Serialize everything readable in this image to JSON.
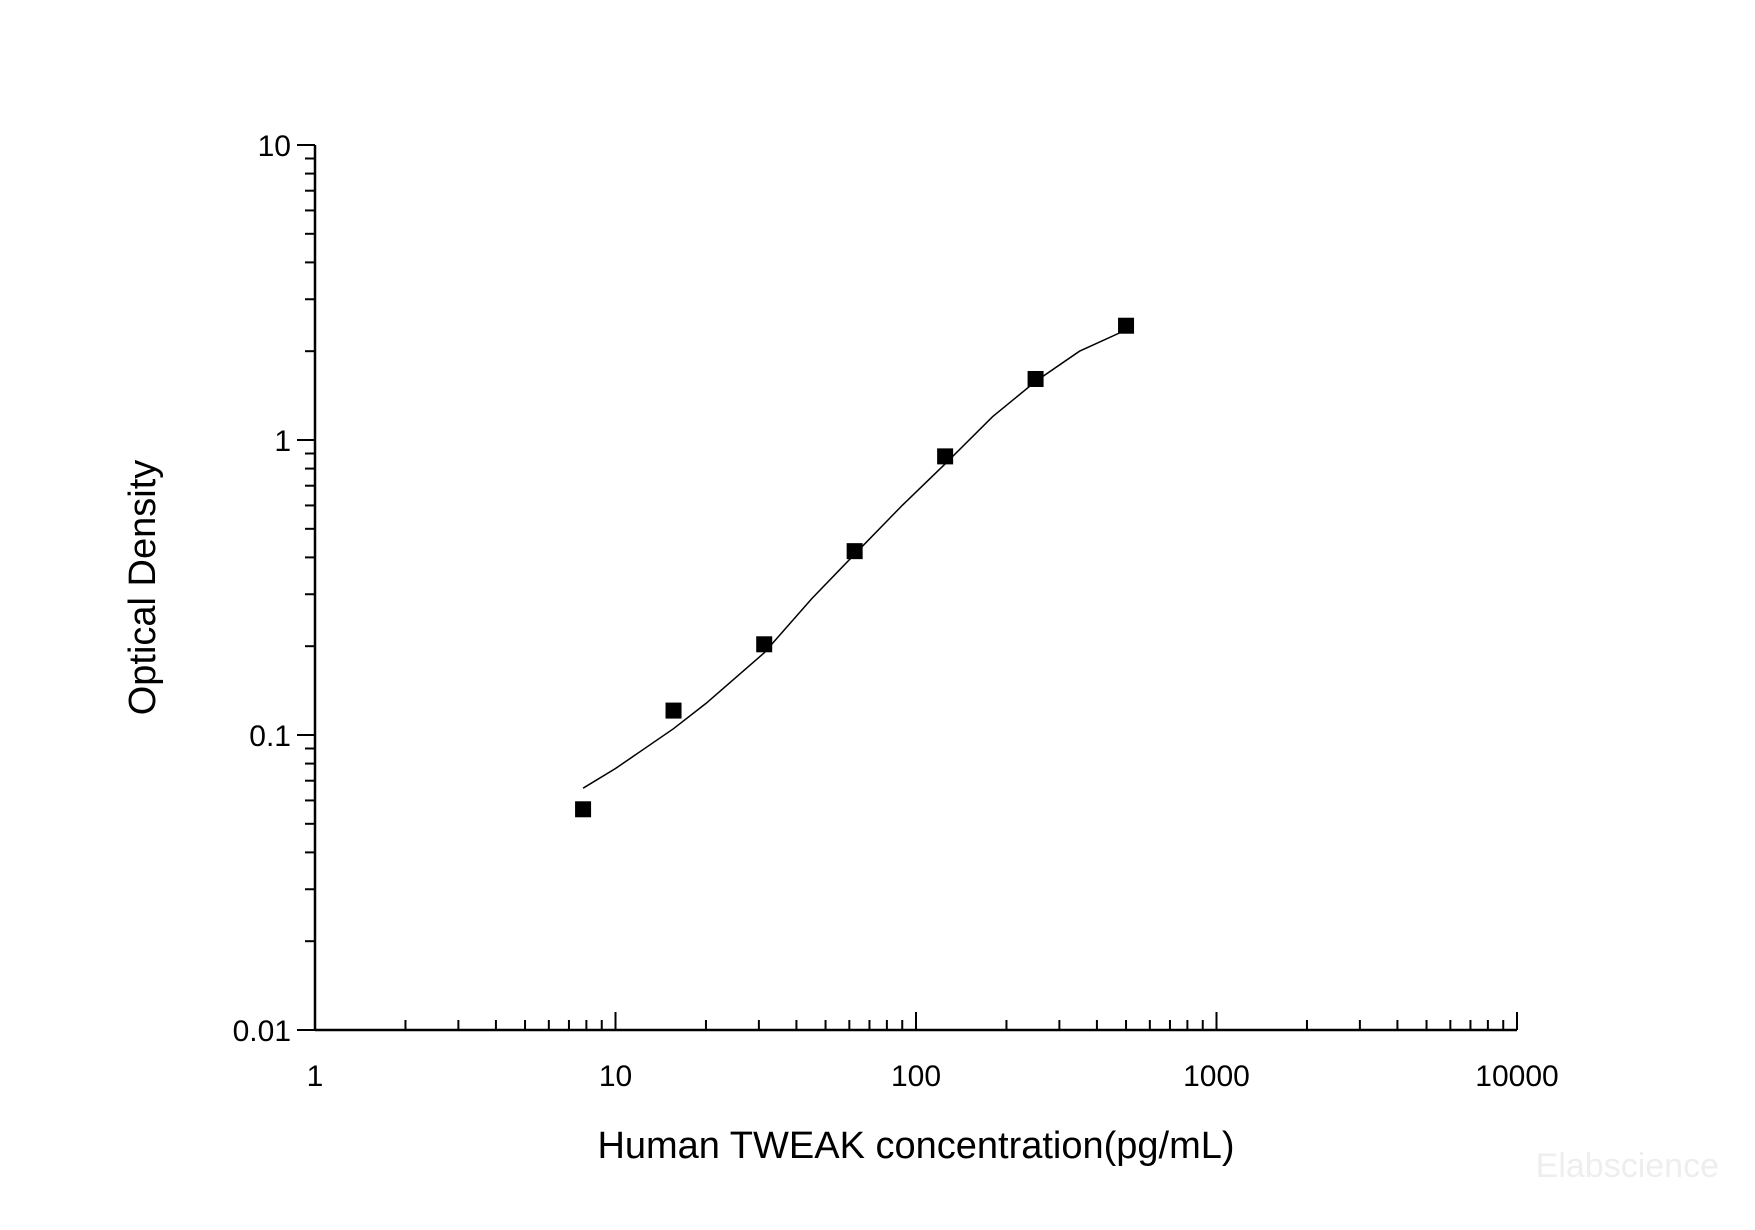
{
  "chart_data": {
    "type": "scatter",
    "xlabel": "Human TWEAK concentration(pg/mL)",
    "ylabel": "Optical Density",
    "x_scale": "log",
    "y_scale": "log",
    "xlim": [
      1,
      10000
    ],
    "ylim": [
      0.01,
      10
    ],
    "x_ticks": [
      "1",
      "10",
      "100",
      "1000",
      "10000"
    ],
    "y_ticks": [
      "0.01",
      "0.1",
      "1",
      "10"
    ],
    "grid": false,
    "series": [
      {
        "marker": "square",
        "color": "#000000",
        "x": [
          7.8,
          15.6,
          31.25,
          62.5,
          125,
          250,
          500
        ],
        "y": [
          0.056,
          0.121,
          0.203,
          0.42,
          0.88,
          1.61,
          2.44
        ]
      }
    ],
    "fit_curve": {
      "color": "#000000",
      "x": [
        7.8,
        10,
        15.6,
        20,
        31.25,
        45,
        62.5,
        90,
        125,
        180,
        250,
        350,
        500
      ],
      "y": [
        0.066,
        0.077,
        0.105,
        0.128,
        0.19,
        0.29,
        0.41,
        0.6,
        0.83,
        1.2,
        1.58,
        2.0,
        2.36
      ]
    }
  },
  "watermark": "Elabscience"
}
